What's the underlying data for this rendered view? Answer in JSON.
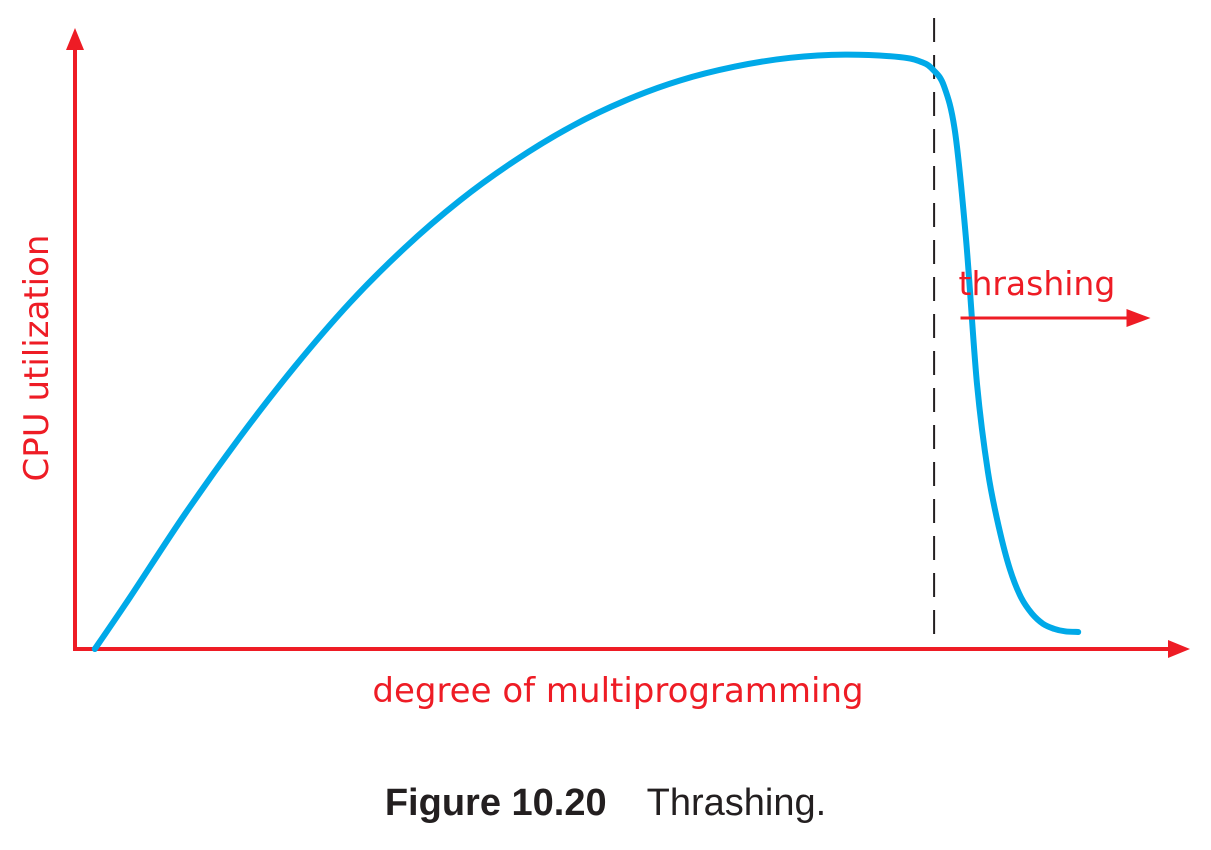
{
  "chart_data": {
    "type": "line",
    "title": "",
    "xlabel": "degree of multiprogramming",
    "ylabel": "CPU utilization",
    "xlim": [
      0,
      100
    ],
    "ylim": [
      0,
      100
    ],
    "grid": false,
    "axis_color": "#ee1c25",
    "label_color": "#ee1c25",
    "curve_color": "#00a9e8",
    "threshold_line_color": "#231f20",
    "series": [
      {
        "x": [
          1.8,
          5,
          10,
          15,
          20,
          25,
          30,
          35,
          40,
          45,
          50,
          55,
          60,
          65,
          70,
          75,
          77,
          78,
          79,
          80,
          81,
          82,
          83,
          84,
          85,
          86,
          87,
          88,
          89,
          90,
          91.2
        ],
        "y": [
          0,
          8.2,
          21.4,
          33.6,
          44.8,
          54.9,
          63.6,
          71.1,
          77.4,
          82.7,
          86.9,
          90.1,
          92.3,
          93.7,
          94.2,
          93.8,
          93.0,
          91.8,
          89.2,
          82.0,
          65.0,
          42.0,
          28.0,
          19.2,
          12.6,
          8.2,
          5.6,
          4.0,
          3.2,
          2.8,
          2.7
        ]
      }
    ],
    "threshold_x": 78.1,
    "annotations": [
      {
        "label": "thrashing",
        "x": 80.5,
        "y": 100,
        "arrow": "right"
      }
    ]
  },
  "caption": {
    "figure_number": "Figure 10.20",
    "text": "Thrashing."
  }
}
